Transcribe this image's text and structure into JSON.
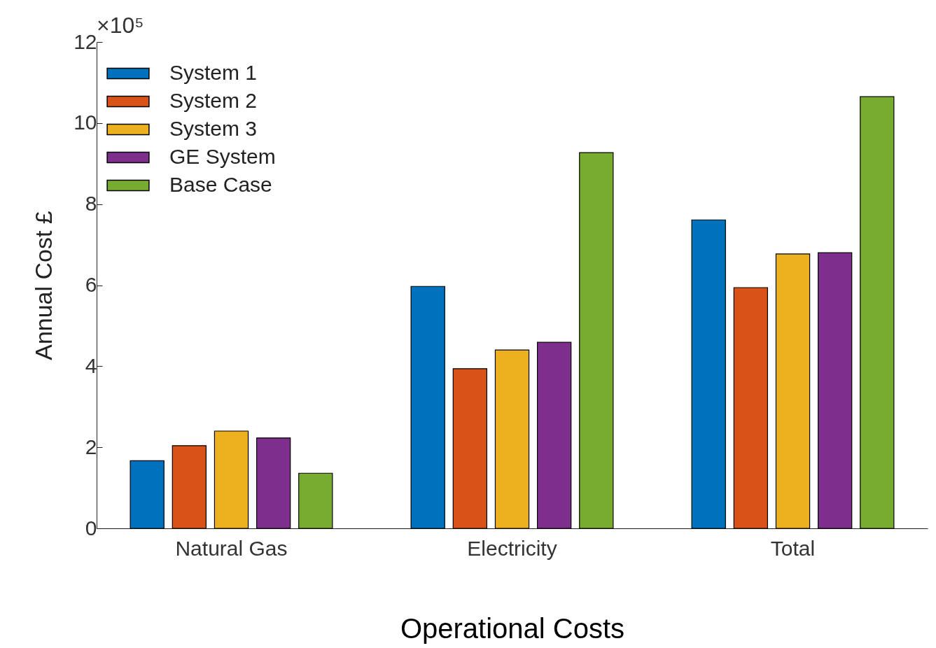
{
  "chart_data": {
    "type": "bar",
    "xlabel": "Operational Costs",
    "ylabel": "Annual Cost £",
    "categories": [
      "Natural Gas",
      "Electricity",
      "Total"
    ],
    "series": [
      {
        "name": "System 1",
        "color": "#0072bd",
        "values": [
          1.67,
          5.97,
          7.61
        ]
      },
      {
        "name": "System 2",
        "color": "#d95319",
        "values": [
          2.04,
          3.94,
          5.94
        ]
      },
      {
        "name": "System 3",
        "color": "#edb120",
        "values": [
          2.4,
          4.4,
          6.77
        ]
      },
      {
        "name": "GE System",
        "color": "#7e2f8e",
        "values": [
          2.23,
          4.59,
          6.8
        ]
      },
      {
        "name": "Base Case",
        "color": "#77ac30",
        "values": [
          1.36,
          9.27,
          10.65
        ]
      }
    ],
    "ylim": [
      0,
      12
    ],
    "yticks": [
      0,
      2,
      4,
      6,
      8,
      10,
      12
    ],
    "legend": "top left",
    "annotations": [
      "×10⁵"
    ]
  }
}
